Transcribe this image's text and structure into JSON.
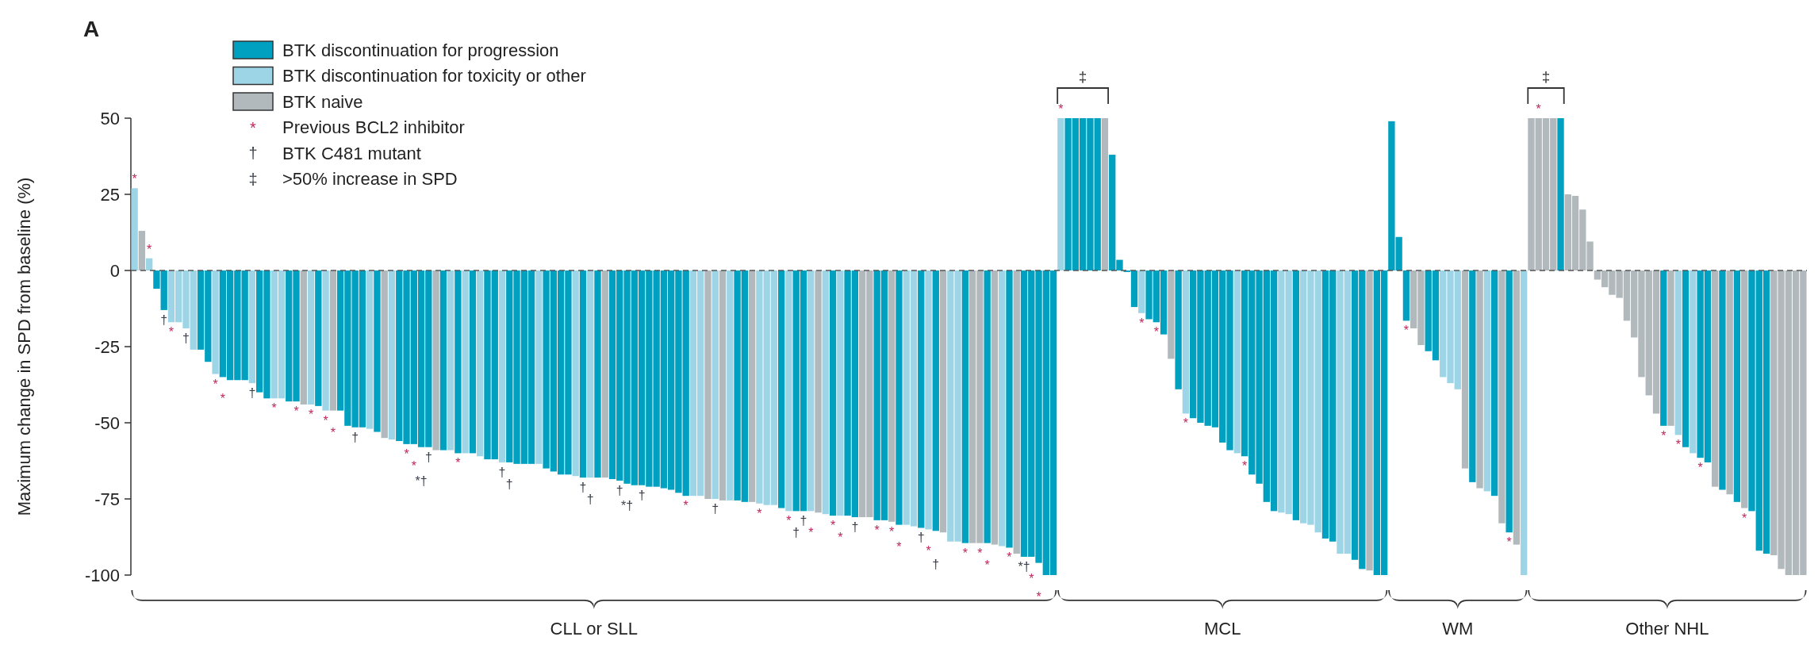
{
  "chart_data": {
    "type": "bar",
    "title": "A",
    "ylabel": "Maximum change in SPD from baseline (%)",
    "categories": [
      null,
      null,
      null,
      null,
      null,
      null,
      null,
      null,
      null,
      null,
      null,
      null,
      null,
      null,
      null,
      null,
      null,
      null,
      null,
      null,
      null,
      null,
      null,
      null,
      null,
      null,
      null,
      null,
      null,
      null,
      null,
      null,
      null,
      null,
      null,
      null,
      null,
      null,
      null,
      null,
      null,
      null,
      null,
      null,
      null,
      null,
      null,
      null,
      null,
      null,
      null,
      null,
      null,
      null,
      null,
      null,
      null,
      null,
      null,
      null,
      null,
      null,
      null,
      null,
      null,
      null,
      null,
      null,
      null,
      null,
      null,
      null,
      null,
      null,
      null,
      null,
      null,
      null,
      null,
      null,
      null,
      null,
      null,
      null,
      null,
      null,
      null,
      null,
      null,
      null,
      null,
      null,
      null,
      null,
      null,
      null,
      null,
      null,
      null,
      null,
      null,
      null,
      null,
      null,
      null,
      null,
      null,
      null,
      null,
      null,
      null,
      null,
      null,
      null,
      null,
      null,
      null,
      null,
      null,
      null,
      null,
      null,
      null,
      null,
      null,
      null,
      null,
      null,
      null,
      null,
      null,
      null,
      null,
      null,
      null,
      null,
      null,
      null,
      null,
      null,
      null,
      null,
      null,
      null,
      null,
      null,
      null,
      null,
      null,
      null,
      null,
      null,
      null,
      null,
      null,
      null,
      null,
      null,
      null,
      null,
      null,
      null,
      null,
      null,
      null,
      null,
      null,
      null,
      null,
      null,
      null,
      null,
      null,
      null,
      null,
      null,
      null,
      null,
      null,
      null,
      null,
      null,
      null,
      null,
      null,
      null,
      null,
      null,
      null,
      null,
      null,
      null,
      null,
      null,
      null,
      null,
      null,
      null,
      null,
      null,
      null,
      null,
      null,
      null,
      null,
      null,
      null,
      null,
      null,
      null,
      null,
      null,
      null,
      null,
      null,
      null,
      null,
      null,
      null,
      null,
      null,
      null,
      null,
      null,
      null,
      null,
      null,
      null
    ],
    "series": [
      {
        "name": "BTK discontinuation for progression",
        "color": "#00a0c1",
        "values": [
          null,
          null,
          null,
          -6,
          -13,
          null,
          null,
          null,
          null,
          -26,
          -30,
          null,
          -35,
          -36,
          -36,
          -36,
          null,
          -40,
          -42,
          null,
          null,
          -43,
          -43,
          null,
          null,
          -44.5,
          null,
          null,
          -46,
          -51,
          -51.5,
          -51.5,
          null,
          -53,
          null,
          null,
          -56,
          -57,
          -57,
          -58,
          -58,
          null,
          -59,
          null,
          -60,
          null,
          -60,
          null,
          -62,
          -62,
          null,
          -63,
          -63.5,
          -63.5,
          -63.5,
          null,
          -65,
          -66,
          -67,
          -67,
          null,
          -68,
          null,
          -68,
          null,
          -68.5,
          -69,
          -70,
          -70.5,
          -70.5,
          -71,
          -71,
          -71.5,
          -72,
          -73,
          -74,
          null,
          null,
          null,
          null,
          null,
          null,
          -75.5,
          -76,
          null,
          null,
          null,
          null,
          -78,
          null,
          -79,
          -79,
          null,
          null,
          null,
          -80.5,
          null,
          -80.5,
          -81,
          null,
          null,
          -82,
          -82,
          null,
          -83.5,
          null,
          null,
          -84.5,
          null,
          -85.5,
          null,
          null,
          null,
          -89.5,
          null,
          null,
          -89.5,
          null,
          null,
          -91,
          null,
          -94,
          -94,
          -96,
          -100,
          -100,
          null,
          50,
          50,
          50,
          50,
          50,
          null,
          38,
          3.5,
          -0.5,
          -12,
          null,
          -16,
          -17,
          -21,
          null,
          -39,
          null,
          -48.5,
          -50,
          -51,
          -51.5,
          -56.5,
          -59,
          null,
          -61,
          -67,
          -70,
          -76,
          -79,
          null,
          null,
          -82,
          null,
          null,
          null,
          -88,
          -89,
          null,
          null,
          -95,
          -98,
          null,
          -100,
          -100,
          49,
          11,
          -16.5,
          null,
          null,
          -26.5,
          -29.5,
          null,
          null,
          null,
          null,
          -69.5,
          null,
          null,
          -74,
          null,
          -86,
          null,
          null,
          null,
          null,
          null,
          null,
          50,
          null,
          null,
          null,
          null,
          null,
          null,
          null,
          null,
          null,
          null,
          null,
          null,
          null,
          -51,
          null,
          null,
          -58,
          null,
          -61.5,
          -63,
          null,
          -72,
          null,
          -76,
          null,
          -79,
          -92,
          -93,
          null,
          null,
          null,
          null,
          null
        ],
        "value_labels": [
          null,
          null,
          null,
          null,
          "†",
          null,
          null,
          null,
          null,
          null,
          null,
          null,
          "*",
          null,
          null,
          null,
          null,
          null,
          null,
          null,
          null,
          null,
          "*",
          null,
          null,
          null,
          null,
          null,
          null,
          null,
          "†",
          null,
          null,
          null,
          null,
          null,
          null,
          "*",
          "*",
          "*†",
          "†",
          null,
          null,
          null,
          "*",
          null,
          null,
          null,
          null,
          null,
          null,
          "†",
          null,
          null,
          null,
          null,
          null,
          null,
          null,
          null,
          null,
          "†",
          null,
          null,
          null,
          null,
          "†",
          "*†",
          null,
          "†",
          null,
          null,
          null,
          null,
          null,
          "*",
          null,
          null,
          null,
          null,
          null,
          null,
          null,
          null,
          null,
          null,
          null,
          null,
          null,
          null,
          "†",
          "†",
          null,
          null,
          null,
          "*",
          null,
          null,
          "†",
          null,
          null,
          "*",
          null,
          null,
          "*",
          null,
          null,
          "†",
          null,
          "†",
          null,
          null,
          null,
          "*",
          null,
          null,
          "*",
          null,
          null,
          "*",
          null,
          "*†",
          "*",
          "*",
          null,
          null,
          null,
          null,
          null,
          null,
          null,
          null,
          null,
          null,
          null,
          null,
          null,
          null,
          null,
          "*",
          null,
          null,
          null,
          null,
          null,
          null,
          null,
          null,
          null,
          null,
          null,
          "*",
          null,
          null,
          null,
          null,
          null,
          null,
          null,
          null,
          null,
          null,
          null,
          null,
          null,
          null,
          null,
          null,
          null,
          null,
          null,
          null,
          null,
          "*",
          null,
          null,
          null,
          null,
          null,
          null,
          null,
          null,
          null,
          null,
          null,
          null,
          null,
          "*",
          null,
          null,
          null,
          null,
          null,
          null,
          null,
          null,
          null,
          null,
          null,
          null,
          null,
          null,
          null,
          null,
          null,
          null,
          null,
          null,
          "*",
          null,
          null,
          null,
          null,
          "*",
          null,
          null,
          null,
          null,
          null,
          null,
          null,
          null,
          null,
          null,
          null,
          null,
          null,
          null
        ]
      },
      {
        "name": "BTK discontinuation for toxicity or other",
        "color": "#9dd5e6",
        "values": [
          27,
          null,
          4,
          null,
          null,
          -17,
          -17,
          -19,
          -26,
          null,
          null,
          -34,
          null,
          null,
          null,
          null,
          -37,
          null,
          null,
          -42,
          -42,
          null,
          null,
          null,
          -44,
          null,
          -46,
          null,
          null,
          null,
          null,
          null,
          -52,
          null,
          null,
          -55.5,
          null,
          null,
          null,
          null,
          null,
          null,
          null,
          -59,
          null,
          -60,
          null,
          -61,
          null,
          null,
          -63,
          null,
          null,
          null,
          null,
          -63.5,
          null,
          null,
          null,
          null,
          -67.5,
          null,
          -68,
          null,
          null,
          null,
          null,
          null,
          null,
          null,
          null,
          null,
          null,
          null,
          null,
          null,
          -74,
          -74,
          null,
          -75,
          null,
          -75.5,
          null,
          null,
          null,
          -76.5,
          -77,
          -77,
          null,
          -79,
          null,
          null,
          -79,
          null,
          -80,
          null,
          -80.5,
          null,
          null,
          null,
          null,
          null,
          null,
          null,
          null,
          -83.5,
          -84,
          null,
          -85,
          null,
          null,
          -89,
          -89,
          null,
          null,
          null,
          null,
          null,
          -90.5,
          null,
          null,
          null,
          null,
          null,
          null,
          null,
          50,
          null,
          null,
          null,
          null,
          null,
          null,
          null,
          null,
          null,
          null,
          -14,
          null,
          null,
          null,
          null,
          null,
          -47,
          null,
          null,
          null,
          null,
          null,
          null,
          -60,
          null,
          null,
          null,
          null,
          null,
          -79.5,
          -80,
          null,
          -83,
          -83.5,
          -86,
          null,
          null,
          -93,
          -93,
          null,
          null,
          null,
          null,
          null,
          null,
          null,
          null,
          null,
          null,
          null,
          null,
          -35,
          -37,
          -39,
          null,
          null,
          null,
          -72.5,
          null,
          null,
          null,
          null,
          -100,
          null,
          null,
          null,
          null,
          null,
          null,
          null,
          null,
          null,
          null,
          null,
          null,
          null,
          null,
          null,
          null,
          null,
          null,
          null,
          null,
          -54,
          null,
          -60,
          null,
          null,
          null,
          null,
          null,
          null,
          null,
          null,
          null,
          null,
          null,
          null,
          null,
          null,
          null
        ],
        "value_labels": [
          "*",
          null,
          "*",
          null,
          null,
          "*",
          null,
          "†",
          null,
          null,
          null,
          "*",
          null,
          null,
          null,
          null,
          "†",
          null,
          null,
          "*",
          null,
          null,
          null,
          null,
          "*",
          null,
          "*",
          null,
          null,
          null,
          null,
          null,
          null,
          null,
          null,
          null,
          null,
          null,
          null,
          null,
          null,
          null,
          null,
          null,
          null,
          null,
          null,
          null,
          null,
          null,
          "†",
          null,
          null,
          null,
          null,
          null,
          null,
          null,
          null,
          null,
          null,
          null,
          "†",
          null,
          null,
          null,
          null,
          null,
          null,
          null,
          null,
          null,
          null,
          null,
          null,
          null,
          null,
          null,
          null,
          "†",
          null,
          null,
          null,
          null,
          null,
          "*",
          null,
          null,
          null,
          "*",
          null,
          null,
          "*",
          null,
          null,
          null,
          "*",
          null,
          null,
          null,
          null,
          null,
          null,
          null,
          null,
          null,
          null,
          null,
          "*",
          null,
          null,
          null,
          null,
          null,
          null,
          null,
          null,
          null,
          null,
          null,
          null,
          null,
          null,
          null,
          null,
          null,
          "*",
          null,
          null,
          null,
          null,
          null,
          null,
          null,
          null,
          null,
          null,
          "*",
          null,
          null,
          null,
          null,
          null,
          "*",
          null,
          null,
          null,
          null,
          null,
          null,
          null,
          null,
          null,
          null,
          null,
          null,
          null,
          null,
          null,
          null,
          null,
          null,
          null,
          null,
          null,
          null,
          null,
          null,
          null,
          null,
          null,
          null,
          null,
          null,
          null,
          null,
          null,
          null,
          null,
          null,
          null,
          null,
          null,
          null,
          null,
          null,
          null,
          null,
          null,
          null,
          null,
          null,
          null,
          null,
          null,
          null,
          null,
          null,
          null,
          null,
          null,
          null,
          null,
          null,
          null,
          null,
          null,
          null,
          null,
          null,
          "*",
          null,
          null,
          null,
          null,
          null,
          null,
          null,
          null,
          null,
          null,
          null,
          null,
          null,
          null,
          null,
          null,
          null
        ]
      },
      {
        "name": "BTK naive",
        "color": "#b2b9bd",
        "values": [
          null,
          13,
          null,
          null,
          null,
          null,
          null,
          null,
          null,
          null,
          null,
          null,
          null,
          null,
          null,
          null,
          null,
          null,
          null,
          null,
          null,
          null,
          null,
          -44,
          null,
          null,
          null,
          -46,
          null,
          null,
          null,
          null,
          null,
          null,
          -55,
          null,
          null,
          null,
          null,
          null,
          null,
          -59,
          null,
          null,
          null,
          null,
          null,
          null,
          null,
          null,
          null,
          null,
          null,
          null,
          null,
          null,
          null,
          null,
          null,
          null,
          null,
          null,
          null,
          null,
          -68,
          null,
          null,
          null,
          null,
          null,
          null,
          null,
          null,
          null,
          null,
          null,
          null,
          null,
          -75,
          null,
          -75.5,
          null,
          null,
          null,
          -76,
          null,
          null,
          null,
          null,
          null,
          null,
          null,
          null,
          -79.5,
          null,
          null,
          null,
          null,
          null,
          -81,
          -81,
          null,
          null,
          -82.5,
          null,
          null,
          null,
          null,
          null,
          null,
          -86,
          null,
          null,
          null,
          -89.5,
          -89.5,
          null,
          -90,
          null,
          null,
          -93,
          null,
          null,
          null,
          null,
          null,
          null,
          null,
          null,
          null,
          null,
          null,
          50,
          null,
          null,
          null,
          null,
          null,
          null,
          null,
          null,
          -29,
          null,
          null,
          null,
          null,
          null,
          null,
          null,
          null,
          null,
          null,
          null,
          null,
          null,
          null,
          null,
          null,
          null,
          null,
          null,
          null,
          null,
          null,
          null,
          null,
          null,
          null,
          -98.5,
          null,
          null,
          null,
          null,
          null,
          -19,
          -24.5,
          null,
          null,
          null,
          null,
          null,
          -65,
          null,
          -71.5,
          null,
          null,
          -83,
          null,
          -90,
          null,
          50,
          50,
          50,
          50,
          null,
          25,
          24.5,
          20,
          9.5,
          -3,
          -5.5,
          -8,
          -9,
          -16.5,
          -22,
          -35,
          -41,
          -47,
          null,
          -51,
          null,
          null,
          null,
          null,
          null,
          -71,
          null,
          -73.5,
          null,
          -78,
          null,
          null,
          null,
          -93.5,
          -98,
          -100,
          -100,
          -100
        ],
        "value_labels": [
          null,
          null,
          null,
          null,
          null,
          null,
          null,
          null,
          null,
          null,
          null,
          null,
          null,
          null,
          null,
          null,
          null,
          null,
          null,
          null,
          null,
          null,
          null,
          null,
          null,
          null,
          null,
          "*",
          null,
          null,
          null,
          null,
          null,
          null,
          null,
          null,
          null,
          null,
          null,
          null,
          null,
          null,
          null,
          null,
          null,
          null,
          null,
          null,
          null,
          null,
          null,
          null,
          null,
          null,
          null,
          null,
          null,
          null,
          null,
          null,
          null,
          null,
          null,
          null,
          null,
          null,
          null,
          null,
          null,
          null,
          null,
          null,
          null,
          null,
          null,
          null,
          null,
          null,
          null,
          null,
          null,
          null,
          null,
          null,
          null,
          null,
          null,
          null,
          null,
          null,
          null,
          null,
          null,
          null,
          null,
          null,
          null,
          null,
          null,
          null,
          null,
          null,
          null,
          "*",
          null,
          null,
          null,
          null,
          null,
          null,
          null,
          null,
          null,
          null,
          null,
          "*",
          null,
          null,
          null,
          null,
          null,
          null,
          null,
          null,
          null,
          null,
          null,
          null,
          null,
          null,
          null,
          null,
          null,
          null,
          null,
          null,
          null,
          null,
          null,
          null,
          null,
          null,
          null,
          null,
          null,
          null,
          null,
          null,
          null,
          null,
          null,
          null,
          null,
          null,
          null,
          null,
          null,
          null,
          null,
          null,
          null,
          null,
          null,
          null,
          null,
          null,
          null,
          null,
          null,
          null,
          null,
          null,
          null,
          null,
          null,
          null,
          null,
          null,
          null,
          null,
          null,
          null,
          null,
          null,
          null,
          null,
          null,
          null,
          null,
          null,
          null,
          "*",
          null,
          null,
          null,
          null,
          null,
          null,
          null,
          null,
          null,
          null,
          null,
          null,
          null,
          null,
          null,
          null,
          null,
          null,
          null,
          null,
          null,
          null,
          null,
          null,
          null,
          null,
          null,
          "*",
          null,
          null,
          null,
          null,
          null,
          null,
          null,
          null
        ]
      }
    ],
    "stacked": true,
    "ylim": [
      -100,
      50
    ],
    "yticks": [
      -100,
      -75,
      -50,
      -25,
      0,
      25,
      50
    ],
    "ref_lines": [
      {
        "axis": "y",
        "value": 0,
        "color": "#555555",
        "line_style": "dashed"
      }
    ],
    "legend": "top left",
    "tick_labels": "y",
    "annotations": [
      "* Previous BCL2 inhibitor",
      "† BTK C481 mutant",
      "‡ >50% increase in SPD",
      "‡",
      "‡",
      "CLL or SLL",
      "MCL",
      "WM",
      "Other NHL"
    ]
  }
}
